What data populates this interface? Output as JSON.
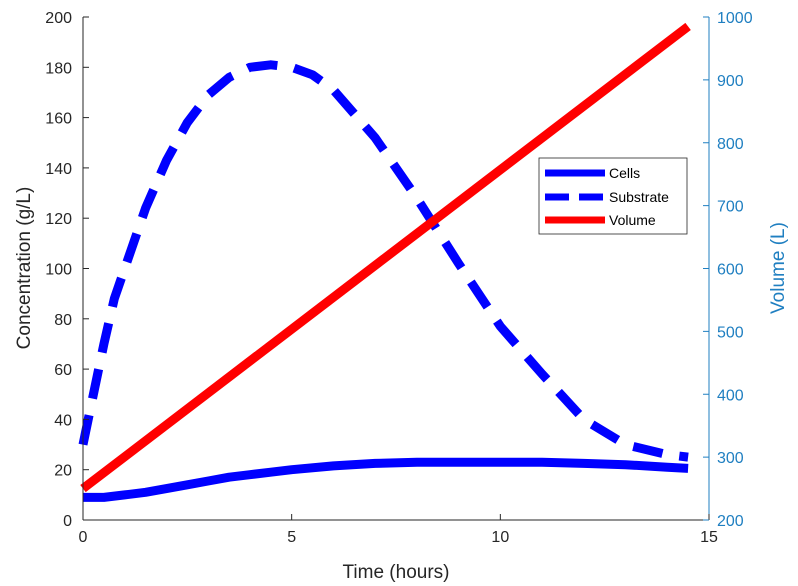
{
  "chart_data": {
    "type": "line",
    "xlabel": "Time (hours)",
    "ylabel_left": "Concentration (g/L)",
    "ylabel_right": "Volume (L)",
    "xlim": [
      0,
      15
    ],
    "ylim_left": [
      0,
      200
    ],
    "ylim_right": [
      200,
      1000
    ],
    "x_ticks": [
      "0",
      "5",
      "10",
      "15"
    ],
    "y_left_ticks": [
      "0",
      "20",
      "40",
      "60",
      "80",
      "100",
      "120",
      "140",
      "160",
      "180",
      "200"
    ],
    "y_right_ticks": [
      "200",
      "300",
      "400",
      "500",
      "600",
      "700",
      "800",
      "900",
      "1000"
    ],
    "grid": false,
    "legend_position": "right-center",
    "colors": {
      "cells": "#0000ff",
      "substrate": "#0000ff",
      "volume": "#ff0000",
      "right_axis": "#1f7fc1"
    },
    "series": [
      {
        "name": "Cells",
        "axis": "left",
        "style": "solid",
        "x": [
          0,
          0.5,
          1,
          1.5,
          2,
          2.5,
          3,
          3.5,
          4,
          4.5,
          5,
          6,
          7,
          8,
          9,
          10,
          11,
          12,
          13,
          14,
          14.5
        ],
        "y": [
          9,
          9,
          10,
          11,
          12.5,
          14,
          15.5,
          17,
          18,
          19,
          20,
          21.5,
          22.5,
          23,
          23,
          23,
          23,
          22.5,
          22,
          21,
          20.5
        ]
      },
      {
        "name": "Substrate",
        "axis": "left",
        "style": "dashed",
        "x": [
          0,
          0.25,
          0.5,
          0.75,
          1,
          1.5,
          2,
          2.5,
          3,
          3.5,
          4,
          4.5,
          5,
          5.5,
          6,
          7,
          8,
          9,
          10,
          11,
          12,
          13,
          14,
          14.5
        ],
        "y": [
          30,
          50,
          70,
          88,
          100,
          124,
          143,
          158,
          169,
          176,
          180,
          181,
          180,
          177,
          171,
          152,
          128,
          102,
          77,
          58,
          40,
          30,
          26,
          25
        ]
      },
      {
        "name": "Volume",
        "axis": "right",
        "style": "solid",
        "x": [
          0,
          14.5
        ],
        "y": [
          250,
          985
        ]
      }
    ]
  }
}
